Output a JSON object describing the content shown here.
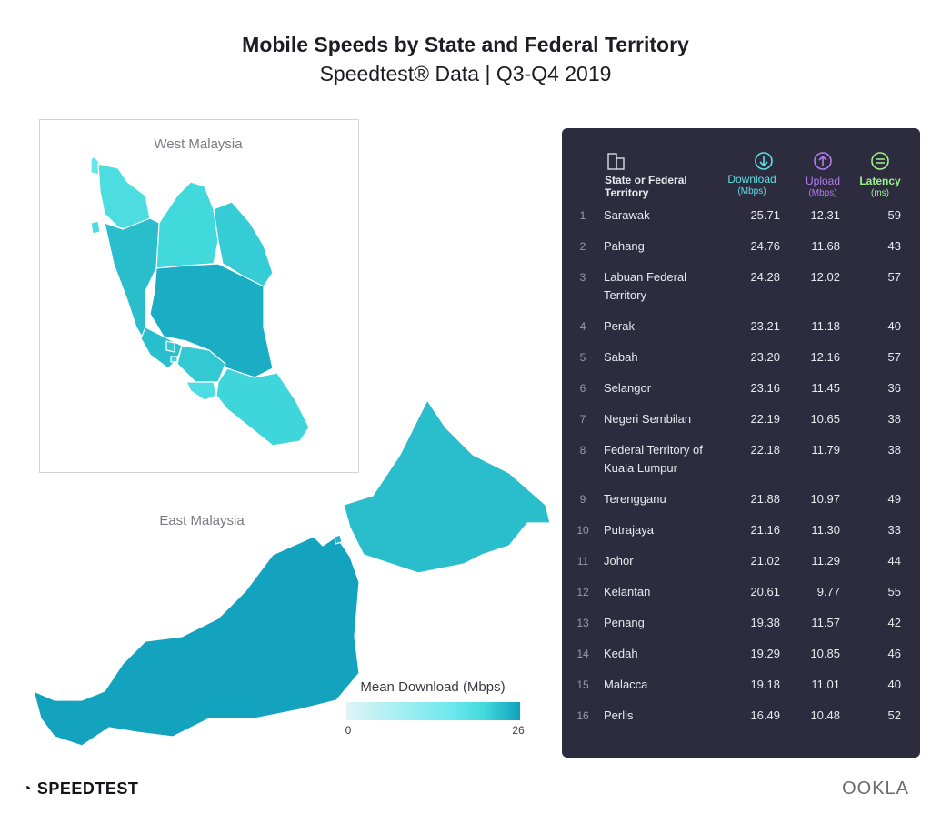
{
  "header": {
    "title": "Mobile Speeds by State and Federal Territory",
    "subtitle": "Speedtest® Data | Q3-Q4 2019"
  },
  "map": {
    "west_label": "West Malaysia",
    "east_label": "East Malaysia",
    "legend": {
      "title": "Mean Download (Mbps)",
      "min": 0,
      "max": 26
    }
  },
  "table": {
    "columns": {
      "name": "State or Federal Territory",
      "download": "Download",
      "download_unit": "(Mbps)",
      "upload": "Upload",
      "upload_unit": "(Mbps)",
      "latency": "Latency",
      "latency_unit": "(ms)"
    },
    "rows": [
      {
        "rank": 1,
        "name": "Sarawak",
        "download": "25.71",
        "upload": "12.31",
        "latency": "59"
      },
      {
        "rank": 2,
        "name": "Pahang",
        "download": "24.76",
        "upload": "11.68",
        "latency": "43"
      },
      {
        "rank": 3,
        "name": "Labuan Federal Territory",
        "download": "24.28",
        "upload": "12.02",
        "latency": "57"
      },
      {
        "rank": 4,
        "name": "Perak",
        "download": "23.21",
        "upload": "11.18",
        "latency": "40"
      },
      {
        "rank": 5,
        "name": "Sabah",
        "download": "23.20",
        "upload": "12.16",
        "latency": "57"
      },
      {
        "rank": 6,
        "name": "Selangor",
        "download": "23.16",
        "upload": "11.45",
        "latency": "36"
      },
      {
        "rank": 7,
        "name": "Negeri Sembilan",
        "download": "22.19",
        "upload": "10.65",
        "latency": "38"
      },
      {
        "rank": 8,
        "name": "Federal Territory of Kuala Lumpur",
        "download": "22.18",
        "upload": "11.79",
        "latency": "38"
      },
      {
        "rank": 9,
        "name": "Terengganu",
        "download": "21.88",
        "upload": "10.97",
        "latency": "49"
      },
      {
        "rank": 10,
        "name": "Putrajaya",
        "download": "21.16",
        "upload": "11.30",
        "latency": "33"
      },
      {
        "rank": 11,
        "name": "Johor",
        "download": "21.02",
        "upload": "11.29",
        "latency": "44"
      },
      {
        "rank": 12,
        "name": "Kelantan",
        "download": "20.61",
        "upload": "9.77",
        "latency": "55"
      },
      {
        "rank": 13,
        "name": "Penang",
        "download": "19.38",
        "upload": "11.57",
        "latency": "42"
      },
      {
        "rank": 14,
        "name": "Kedah",
        "download": "19.29",
        "upload": "10.85",
        "latency": "46"
      },
      {
        "rank": 15,
        "name": "Malacca",
        "download": "19.18",
        "upload": "11.01",
        "latency": "40"
      },
      {
        "rank": 16,
        "name": "Perlis",
        "download": "16.49",
        "upload": "10.48",
        "latency": "52"
      }
    ]
  },
  "footer": {
    "left": "SPEEDTEST",
    "right": "OOKLA"
  }
}
